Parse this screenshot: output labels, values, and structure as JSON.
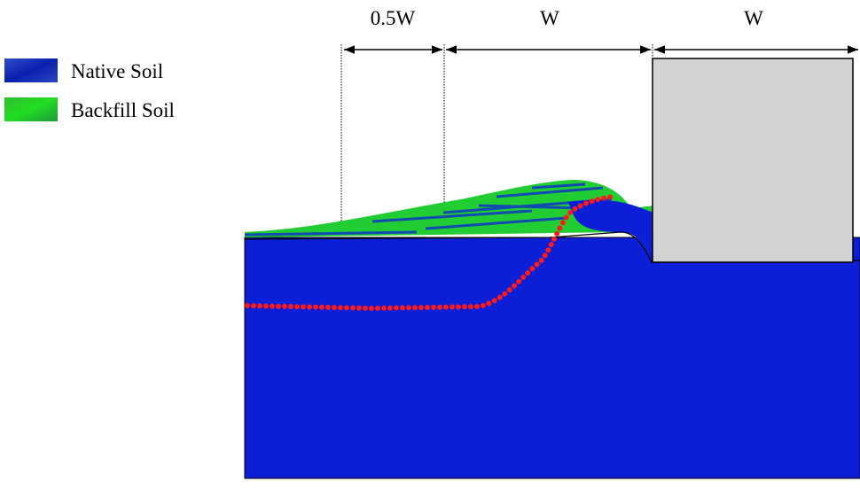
{
  "dimensions": [
    {
      "label": "0.5W"
    },
    {
      "label": "W"
    },
    {
      "label": "W"
    }
  ],
  "legend": [
    {
      "label": "Native Soil"
    },
    {
      "label": "Backfill Soil"
    }
  ]
}
